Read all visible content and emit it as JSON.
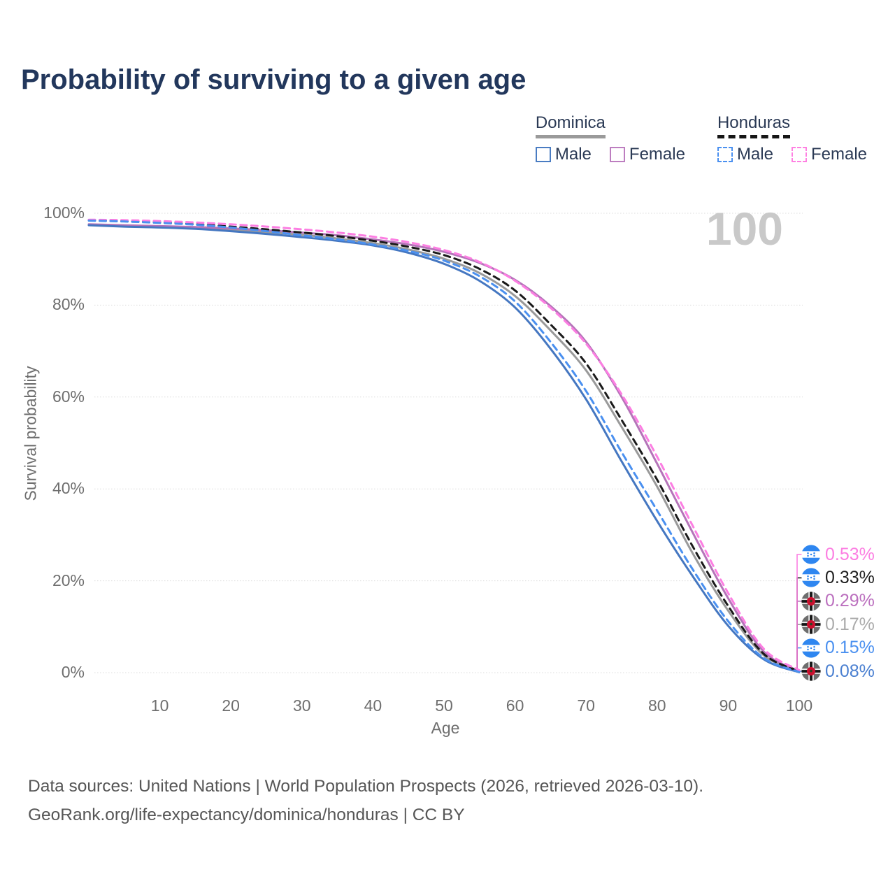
{
  "title": "Probability of surviving to a given age",
  "watermark": "100",
  "legend": {
    "groups": [
      {
        "label": "Dominica",
        "line_style": "solid",
        "underline_color": "#9a9a9a",
        "items": [
          {
            "label": "Male",
            "color": "#4a7cc2",
            "swatch_style": "solid"
          },
          {
            "label": "Female",
            "color": "#bd7ec0",
            "swatch_style": "solid"
          }
        ]
      },
      {
        "label": "Honduras",
        "line_style": "dashed",
        "underline_color": "#161616",
        "items": [
          {
            "label": "Male",
            "color": "#4a90f0",
            "swatch_style": "dashed"
          },
          {
            "label": "Female",
            "color": "#ff80e2",
            "swatch_style": "dashed"
          }
        ]
      }
    ]
  },
  "chart_data": {
    "type": "line",
    "title": "Probability of surviving to a given age",
    "xlabel": "Age",
    "ylabel": "Survival probability",
    "xlim": [
      0,
      100
    ],
    "ylim": [
      0,
      100
    ],
    "grid": "horizontal gridlines every 20%",
    "legend_position": "top-right",
    "x_ticks": [
      10,
      20,
      30,
      40,
      50,
      60,
      70,
      80,
      90,
      100
    ],
    "y_ticks": [
      0,
      20,
      40,
      60,
      80,
      100
    ],
    "y_tick_labels": [
      "0%",
      "20%",
      "40%",
      "60%",
      "80%",
      "100%"
    ],
    "ages": [
      0,
      5,
      10,
      15,
      20,
      25,
      30,
      35,
      40,
      45,
      50,
      55,
      60,
      65,
      70,
      75,
      80,
      85,
      90,
      95,
      100
    ],
    "series": [
      {
        "name": "Dominica Total",
        "country": "Dominica",
        "sex": "Total",
        "color": "#9a9a9a",
        "line_style": "solid",
        "flag": "dominica",
        "end_label": "0.17%",
        "end_label_color": "#ababab",
        "label_row": 3,
        "values": [
          97.5,
          97.3,
          97.1,
          96.8,
          96.4,
          95.9,
          95.3,
          94.5,
          93.5,
          92.1,
          90.1,
          87.0,
          82.0,
          74.5,
          65.8,
          53.5,
          40.5,
          26.0,
          13.5,
          3.8,
          0.17
        ]
      },
      {
        "name": "Dominica Female",
        "country": "Dominica",
        "sex": "Female",
        "color": "#b574b9",
        "line_style": "solid",
        "flag": "dominica",
        "end_label": "0.29%",
        "end_label_color": "#bb6fbe",
        "label_row": 2,
        "values": [
          97.6,
          97.4,
          97.2,
          97.0,
          96.7,
          96.3,
          95.8,
          95.2,
          94.3,
          93.2,
          91.6,
          89.2,
          85.5,
          79.8,
          72.0,
          60.0,
          45.5,
          30.5,
          16.2,
          4.6,
          0.29
        ]
      },
      {
        "name": "Dominica Male",
        "country": "Dominica",
        "sex": "Male",
        "color": "#4577c1",
        "line_style": "solid",
        "flag": "dominica",
        "end_label": "0.08%",
        "end_label_color": "#4b80d1",
        "label_row": 5,
        "values": [
          97.4,
          97.1,
          96.9,
          96.6,
          96.1,
          95.5,
          94.8,
          94.0,
          93.0,
          91.4,
          89.0,
          85.3,
          79.5,
          70.5,
          59.5,
          46.0,
          33.0,
          21.0,
          10.2,
          2.9,
          0.08
        ]
      },
      {
        "name": "Honduras Total",
        "country": "Honduras",
        "sex": "Total",
        "color": "#1a1a1a",
        "line_style": "dashed",
        "flag": "honduras",
        "end_label": "0.33%",
        "end_label_color": "#1f1f1f",
        "label_row": 1,
        "values": [
          98.5,
          98.3,
          98.0,
          97.6,
          97.1,
          96.5,
          95.8,
          95.0,
          94.0,
          92.7,
          90.9,
          87.9,
          83.2,
          75.8,
          67.3,
          55.0,
          42.0,
          27.5,
          14.5,
          4.1,
          0.33
        ]
      },
      {
        "name": "Honduras Female",
        "country": "Honduras",
        "sex": "Female",
        "color": "#fc7ee2",
        "line_style": "dashed",
        "flag": "honduras",
        "end_label": "0.53%",
        "end_label_color": "#fc7ee2",
        "label_row": 0,
        "values": [
          98.6,
          98.5,
          98.3,
          98.0,
          97.6,
          97.1,
          96.5,
          95.8,
          94.9,
          93.7,
          92.0,
          89.4,
          85.3,
          79.4,
          71.6,
          60.6,
          47.0,
          32.0,
          17.3,
          5.2,
          0.53
        ]
      },
      {
        "name": "Honduras Male",
        "country": "Honduras",
        "sex": "Male",
        "color": "#4a90f0",
        "line_style": "dashed",
        "flag": "honduras",
        "end_label": "0.15%",
        "end_label_color": "#4a90f0",
        "label_row": 4,
        "values": [
          98.4,
          98.2,
          97.9,
          97.5,
          96.9,
          96.1,
          95.2,
          94.3,
          93.2,
          91.8,
          89.7,
          86.3,
          80.8,
          72.0,
          61.3,
          48.0,
          35.3,
          22.5,
          11.2,
          3.2,
          0.15
        ]
      }
    ]
  },
  "footer": {
    "line1": "Data sources: United Nations | World Population Prospects (2026, retrieved 2026-03-10).",
    "line2": "GeoRank.org/life-expectancy/dominica/honduras | CC BY"
  }
}
